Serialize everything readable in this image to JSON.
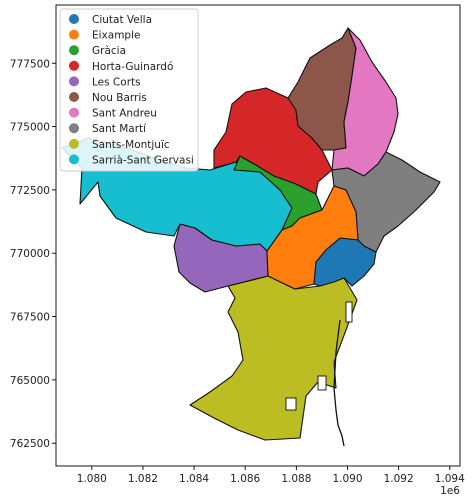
{
  "chart_data": {
    "type": "choropleth",
    "title": "",
    "xlabel": "",
    "ylabel": "",
    "x_offset_label": "1e6",
    "xlim": [
      1078600,
      1094400
    ],
    "ylim": [
      761600,
      779800
    ],
    "x_ticks": [
      1080000,
      1082000,
      1084000,
      1086000,
      1088000,
      1090000,
      1092000,
      1094000
    ],
    "x_tick_labels": [
      "1.080",
      "1.082",
      "1.084",
      "1.086",
      "1.088",
      "1.090",
      "1.092",
      "1.094"
    ],
    "y_ticks": [
      762500,
      765000,
      767500,
      770000,
      772500,
      775000,
      777500
    ],
    "y_tick_labels": [
      "762500",
      "765000",
      "767500",
      "770000",
      "772500",
      "775000",
      "777500"
    ],
    "grid": false,
    "legend_position": "top-left",
    "categories": [
      {
        "name": "Ciutat Vella",
        "color": "#1f77b4"
      },
      {
        "name": "Eixample",
        "color": "#ff7f0e"
      },
      {
        "name": "Gràcia",
        "color": "#2ca02c"
      },
      {
        "name": "Horta-Guinardó",
        "color": "#d62728"
      },
      {
        "name": "Les Corts",
        "color": "#9467bd"
      },
      {
        "name": "Nou Barris",
        "color": "#8c564b"
      },
      {
        "name": "Sant Andreu",
        "color": "#e377c2"
      },
      {
        "name": "Sant Martí",
        "color": "#7f7f7f"
      },
      {
        "name": "Sants-Montjuïc",
        "color": "#bcbd22"
      },
      {
        "name": "Sarrià-Sant Gervasi",
        "color": "#17becf"
      }
    ]
  }
}
